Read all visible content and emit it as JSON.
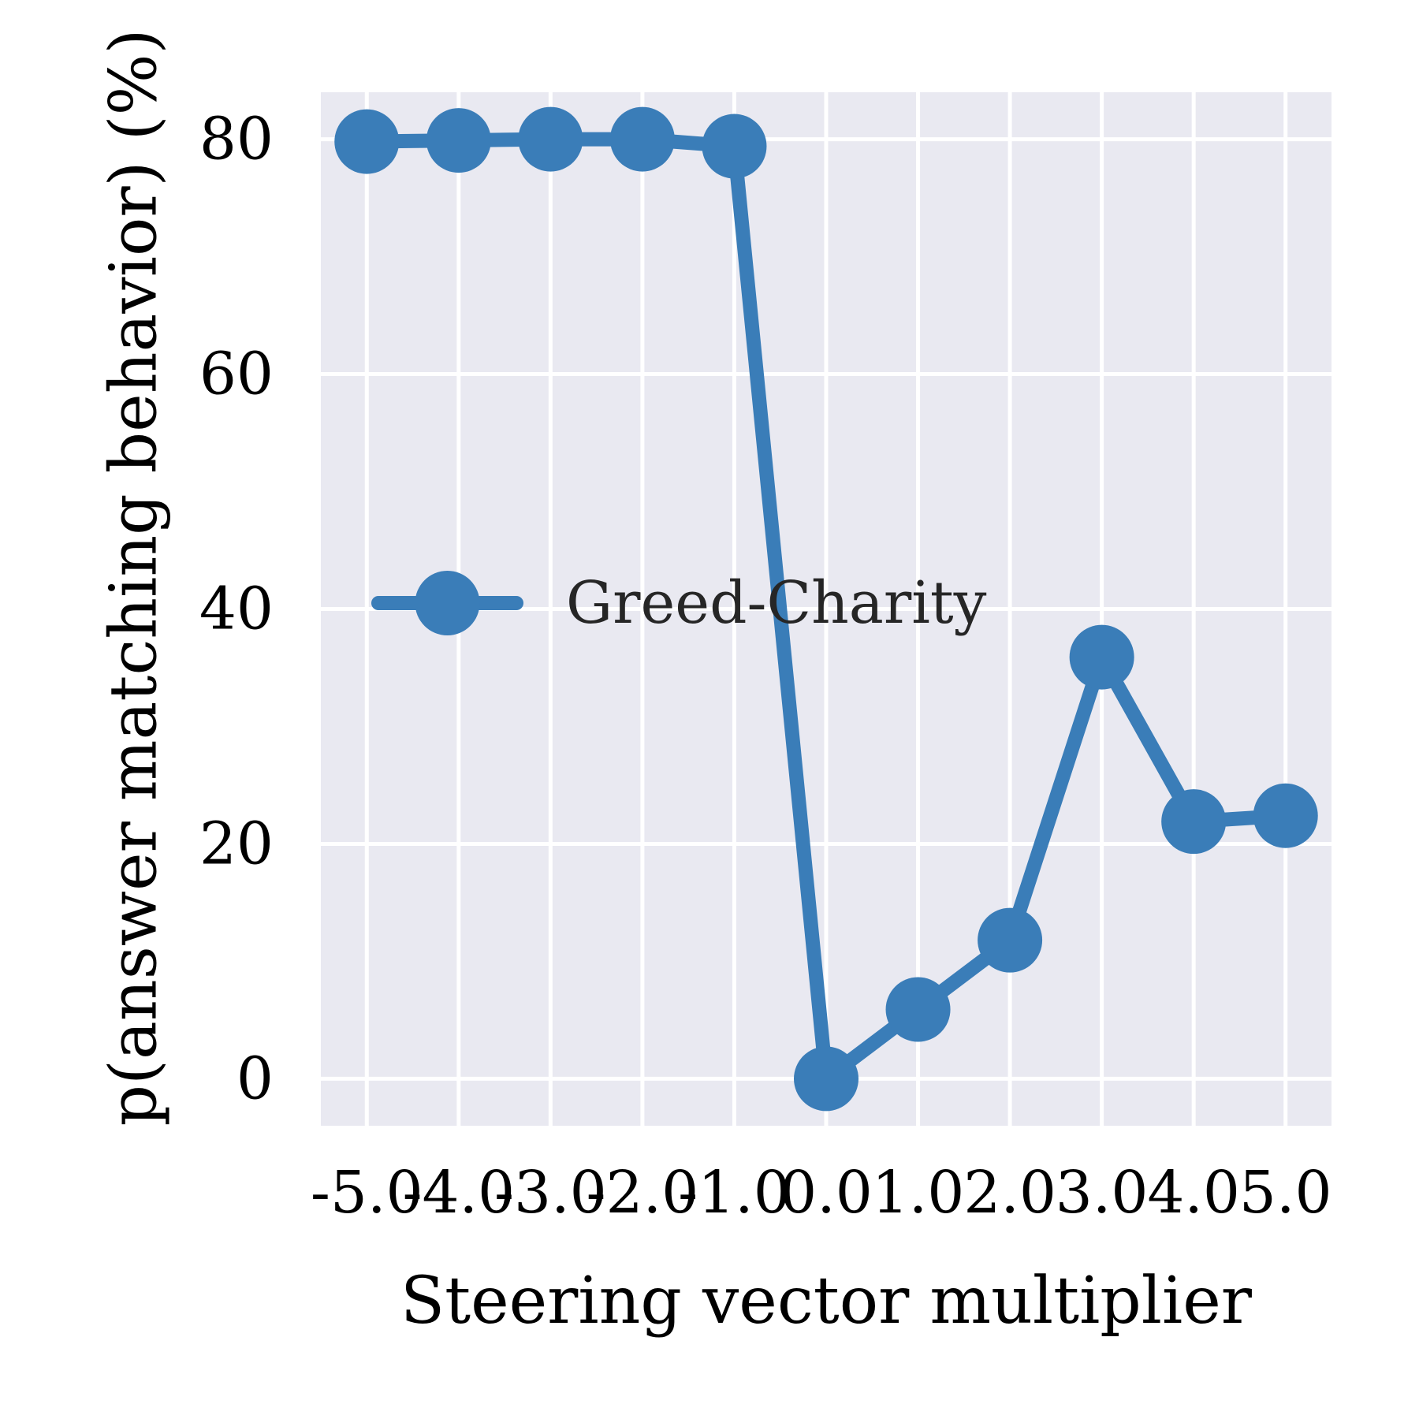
{
  "chart_data": {
    "type": "line",
    "xlabel": "Steering vector multiplier",
    "ylabel": "p(answer matching behavior) (%)",
    "x_tick_labels": [
      "-5.0",
      "-4.0",
      "-3.0",
      "-2.0",
      "-1.0",
      "0.0",
      "1.0",
      "2.0",
      "3.0",
      "4.0",
      "5.0"
    ],
    "y_ticks": [
      0,
      20,
      40,
      60,
      80
    ],
    "xlim": [
      -5.5,
      5.5
    ],
    "ylim": [
      -4,
      84
    ],
    "grid": true,
    "legend_position": "center-left",
    "x": [
      -5,
      -4,
      -3,
      -2,
      -1,
      0,
      1,
      2,
      3,
      4,
      5
    ],
    "series": [
      {
        "name": "Greed-Charity",
        "color": "#3a7db8",
        "values": [
          79.8,
          79.9,
          80.0,
          80.0,
          79.4,
          0.0,
          5.9,
          11.8,
          35.9,
          21.9,
          22.4
        ]
      }
    ],
    "background_color": "#e9e9f1",
    "grid_color": "#ffffff"
  }
}
